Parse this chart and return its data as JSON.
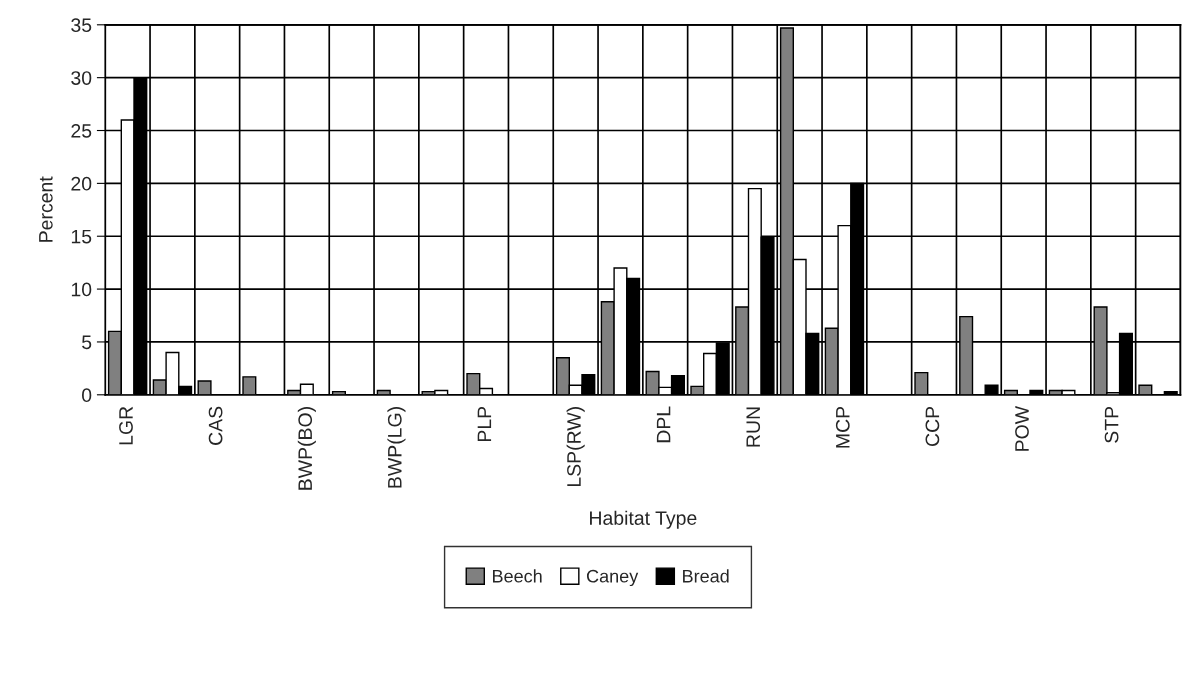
{
  "chart_data": {
    "type": "bar",
    "xlabel": "Habitat Type",
    "ylabel": "Percent",
    "categories": [
      "LGR",
      null,
      "CAS",
      null,
      "BWP(BO)",
      null,
      "BWP(LG)",
      null,
      "PLP",
      null,
      "LSP(RW)",
      null,
      "DPL",
      null,
      "RUN",
      null,
      "MCP",
      null,
      "CCP",
      null,
      "POW",
      null,
      "STP",
      null
    ],
    "series": [
      {
        "name": "Beech",
        "color": "#808080",
        "values": [
          6.0,
          1.4,
          1.3,
          1.7,
          0.4,
          0.3,
          0.4,
          0.3,
          2.0,
          null,
          3.5,
          8.8,
          2.2,
          0.8,
          8.3,
          34.7,
          6.3,
          null,
          2.1,
          7.4,
          0.4,
          0.4,
          8.3,
          0.9
        ]
      },
      {
        "name": "Caney",
        "color": "#ffffff",
        "values": [
          26.0,
          4.0,
          null,
          null,
          1.0,
          null,
          null,
          0.4,
          0.6,
          null,
          0.9,
          12.0,
          0.7,
          3.9,
          19.5,
          12.8,
          16.0,
          null,
          null,
          null,
          null,
          0.4,
          0.2,
          null
        ]
      },
      {
        "name": "Bread",
        "color": "#000000",
        "values": [
          30.0,
          0.8,
          null,
          null,
          null,
          null,
          null,
          null,
          null,
          null,
          1.9,
          11.0,
          1.8,
          4.9,
          14.9,
          5.8,
          20.0,
          null,
          null,
          0.9,
          0.4,
          null,
          5.8,
          0.3
        ]
      }
    ],
    "ylim": [
      0,
      35
    ],
    "yticks": [
      0,
      5,
      10,
      15,
      20,
      25,
      30,
      35
    ],
    "grid": true,
    "legend": "bottom"
  }
}
